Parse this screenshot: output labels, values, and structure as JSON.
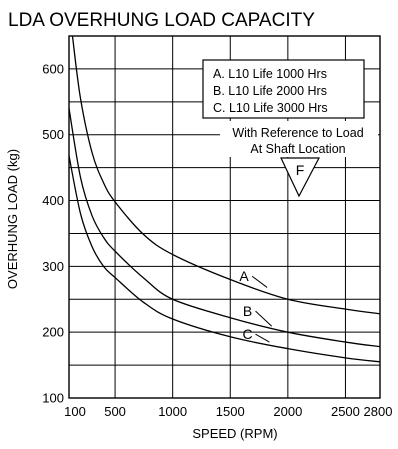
{
  "chart_data": {
    "type": "line",
    "title": "LDA OVERHUNG LOAD CAPACITY",
    "xlabel": "SPEED (RPM)",
    "ylabel": "OVERHUNG LOAD (kg)",
    "xlim": [
      100,
      2800
    ],
    "ylim": [
      100,
      650
    ],
    "x_ticks": [
      100,
      500,
      1000,
      1500,
      2000,
      2500,
      2800
    ],
    "x_tick_labels": [
      "100",
      "500",
      "1000",
      "1500",
      "2000",
      "2500",
      "2800"
    ],
    "y_ticks": [
      100,
      200,
      300,
      400,
      500,
      600
    ],
    "y_tick_labels": [
      "100",
      "200",
      "300",
      "400",
      "500",
      "600"
    ],
    "grid": true,
    "series": [
      {
        "name": "A",
        "x": [
          130,
          200,
          300,
          400,
          500,
          750,
          1000,
          1500,
          2000,
          2500,
          2800
        ],
        "y": [
          650,
          555,
          473,
          427,
          398,
          348,
          318,
          280,
          250,
          235,
          228
        ]
      },
      {
        "name": "B",
        "x": [
          100,
          200,
          300,
          400,
          500,
          750,
          1000,
          1500,
          2000,
          2500,
          2800
        ],
        "y": [
          540,
          435,
          377,
          344,
          323,
          282,
          250,
          222,
          200,
          185,
          178
        ]
      },
      {
        "name": "C",
        "x": [
          100,
          200,
          300,
          400,
          500,
          750,
          1000,
          1500,
          2000,
          2500,
          2800
        ],
        "y": [
          468,
          380,
          330,
          300,
          283,
          245,
          220,
          193,
          175,
          161,
          155
        ]
      }
    ],
    "legend": {
      "entries": [
        "A. L10 Life 1000 Hrs",
        "B. L10 Life 2000 Hrs",
        "C. L10 Life 3000 Hrs"
      ],
      "placement": "top-right"
    },
    "annotation": {
      "lines": [
        "With Reference to Load",
        "At Shaft Location"
      ],
      "marker_label": "F"
    },
    "colors": {
      "line": "#000000",
      "grid": "#000000",
      "background": "#ffffff"
    }
  }
}
